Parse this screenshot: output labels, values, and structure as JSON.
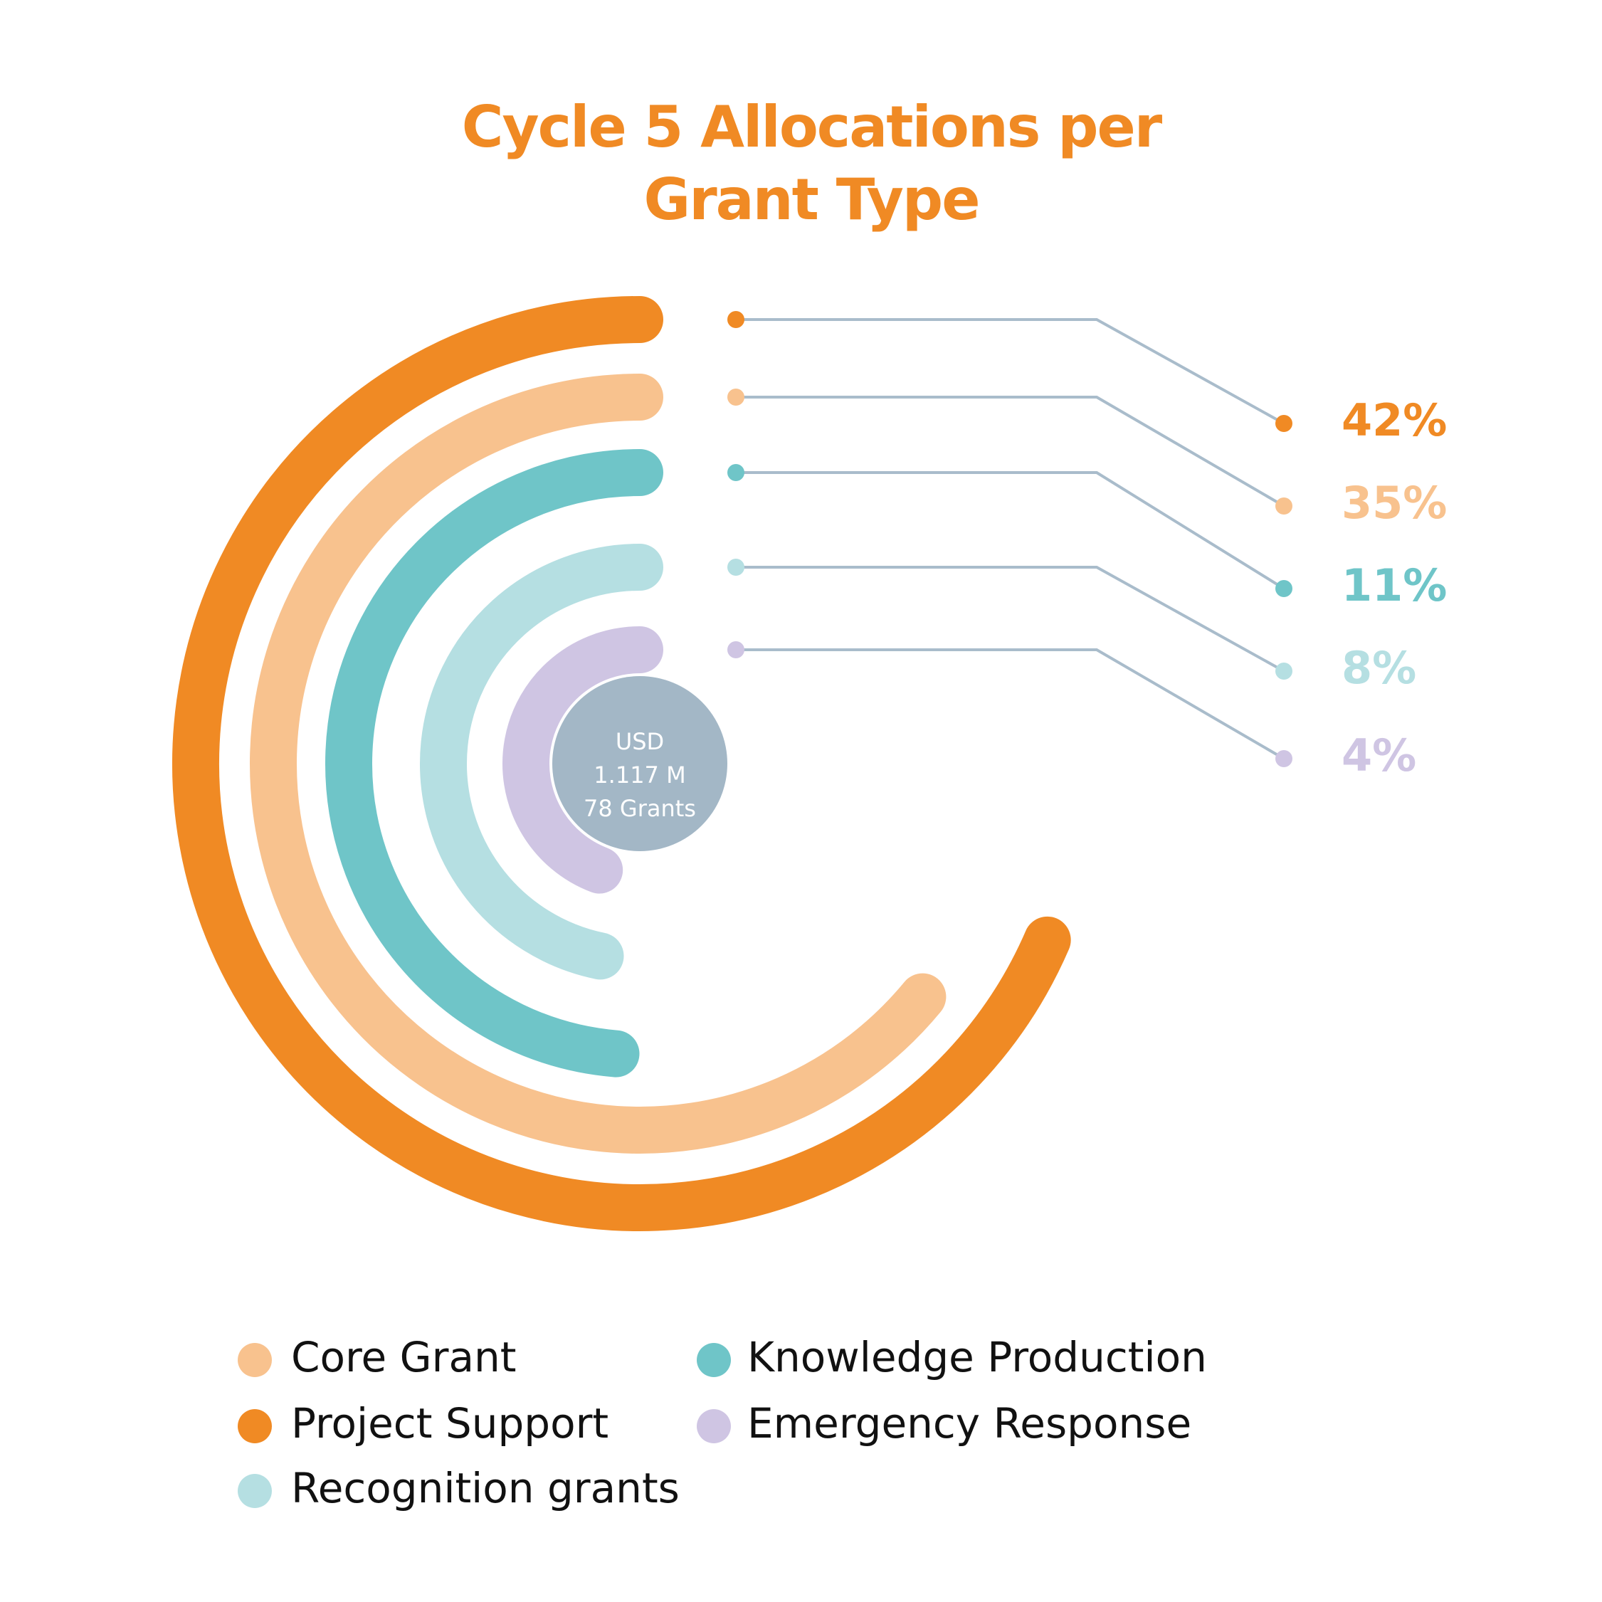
{
  "chart_data": {
    "type": "radial-bar",
    "title": "Cycle 5 Allocations per Grant Type",
    "center_label": [
      "USD",
      "1.117 M",
      "78 Grants"
    ],
    "series": [
      {
        "name": "Project Support",
        "color": "#f08a24",
        "values": [
          42
        ],
        "value_labels": [
          "42%"
        ]
      },
      {
        "name": "Core Grant",
        "color": "#f8c28e",
        "values": [
          35
        ],
        "value_labels": [
          "35%"
        ]
      },
      {
        "name": "Knowledge Production",
        "color": "#6fc5c8",
        "values": [
          11
        ],
        "value_labels": [
          "11%"
        ]
      },
      {
        "name": "Recognition grants",
        "color": "#b5dfe2",
        "values": [
          8
        ],
        "value_labels": [
          "8%"
        ]
      },
      {
        "name": "Emergency Response",
        "color": "#cfc5e3",
        "values": [
          4
        ],
        "value_labels": [
          "4%"
        ]
      }
    ]
  }
}
